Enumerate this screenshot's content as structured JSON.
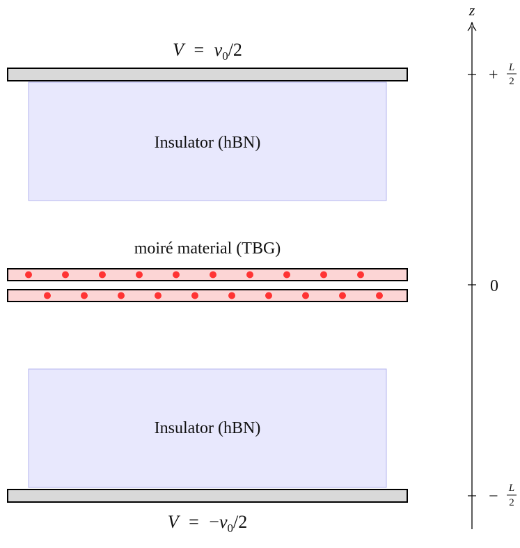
{
  "top_gate": {
    "label_var": "V",
    "label_eq": "=",
    "label_expr": "v",
    "label_sub": "0",
    "label_tail": "/2"
  },
  "bottom_gate": {
    "label_var": "V",
    "label_eq": "=",
    "label_sign": "−",
    "label_expr": "v",
    "label_sub": "0",
    "label_tail": "/2"
  },
  "insulators": [
    {
      "label": "Insulator (hBN)"
    },
    {
      "label": "Insulator (hBN)"
    }
  ],
  "moire": {
    "label": "moiré material (TBG)"
  },
  "axis": {
    "name": "z",
    "ticks": [
      {
        "sign": "+",
        "num": "L",
        "den": "2"
      },
      {
        "text": "0"
      },
      {
        "sign": "−",
        "num": "L",
        "den": "2"
      }
    ]
  },
  "colors": {
    "gate_fill": "#d9d9d9",
    "gate_stroke": "#000000",
    "insulator_fill": "#e8e8fd",
    "insulator_stroke": "#b3b3ee",
    "layer_fill": "#fcd5d5",
    "layer_stroke": "#000000",
    "dot": "#ff3333"
  }
}
